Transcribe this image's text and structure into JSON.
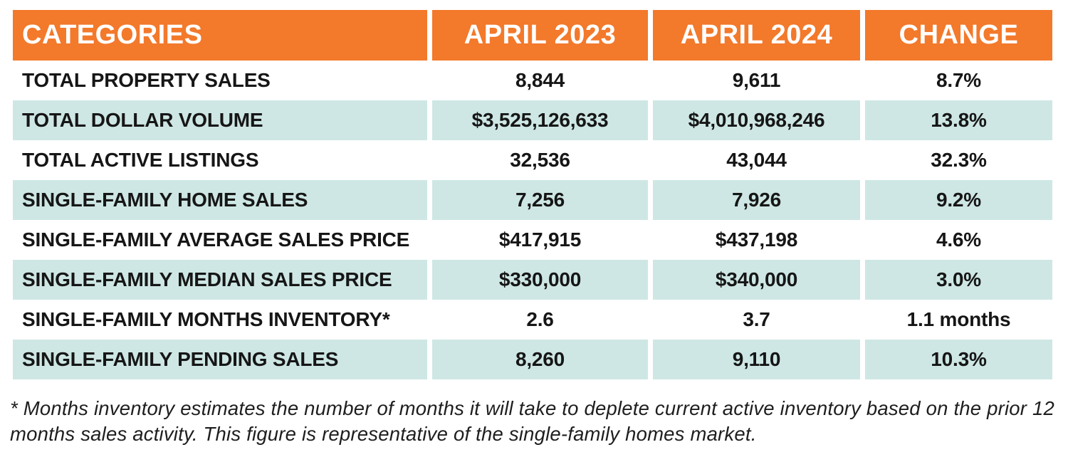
{
  "chart_data": {
    "type": "table",
    "title": "",
    "columns": [
      "CATEGORIES",
      "APRIL 2023",
      "APRIL 2024",
      "CHANGE"
    ],
    "rows": [
      {
        "category": "TOTAL PROPERTY SALES",
        "april_2023": "8,844",
        "april_2024": "9,611",
        "change": "8.7%"
      },
      {
        "category": "TOTAL DOLLAR VOLUME",
        "april_2023": "$3,525,126,633",
        "april_2024": "$4,010,968,246",
        "change": "13.8%"
      },
      {
        "category": "TOTAL ACTIVE LISTINGS",
        "april_2023": "32,536",
        "april_2024": "43,044",
        "change": "32.3%"
      },
      {
        "category": "SINGLE-FAMILY HOME SALES",
        "april_2023": "7,256",
        "april_2024": "7,926",
        "change": "9.2%"
      },
      {
        "category": "SINGLE-FAMILY AVERAGE SALES PRICE",
        "april_2023": "$417,915",
        "april_2024": "$437,198",
        "change": "4.6%"
      },
      {
        "category": "SINGLE-FAMILY MEDIAN SALES PRICE",
        "april_2023": "$330,000",
        "april_2024": "$340,000",
        "change": "3.0%"
      },
      {
        "category": "SINGLE-FAMILY MONTHS INVENTORY*",
        "april_2023": "2.6",
        "april_2024": "3.7",
        "change": "1.1 months"
      },
      {
        "category": "SINGLE-FAMILY PENDING SALES",
        "april_2023": "8,260",
        "april_2024": "9,110",
        "change": "10.3%"
      }
    ],
    "footnote": "* Months inventory estimates the number of months it will take to deplete current active inventory based on the prior 12 months sales activity. This figure is representative of the single-family homes market.",
    "layout": {
      "row_striping": "alternating white and teal",
      "header_alignment": "first column left, others center"
    }
  },
  "colors": {
    "header_bg": "#F3792B",
    "header_text": "#FFFFFF",
    "row_alt_bg": "#CEE7E4",
    "row_bg": "#FFFFFF",
    "body_text": "#161616"
  }
}
